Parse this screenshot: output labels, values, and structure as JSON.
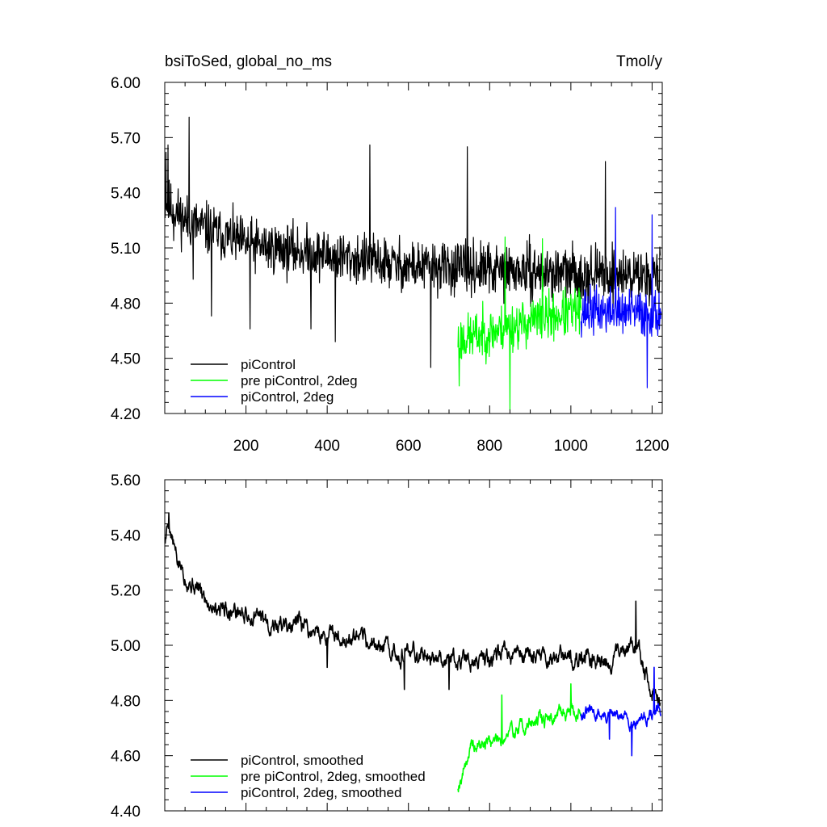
{
  "chart_data": [
    {
      "type": "line",
      "title": "bsiToSed, global_no_ms",
      "units": "Tmol/y",
      "xlim": [
        0,
        1225
      ],
      "ylim": [
        4.2,
        6.0
      ],
      "xticks": [
        200,
        400,
        600,
        800,
        1000,
        1200
      ],
      "xtick_labels": [
        "200",
        "400",
        "600",
        "800",
        "1000",
        "1200"
      ],
      "yticks": [
        4.2,
        4.5,
        4.8,
        5.1,
        5.4,
        5.7,
        6.0
      ],
      "ytick_labels": [
        "4.20",
        "4.50",
        "4.80",
        "5.10",
        "5.40",
        "5.70",
        "6.00"
      ],
      "legend_position": "bottom-left",
      "grid": false,
      "series": [
        {
          "name": "piControl",
          "color": "#000000",
          "x_range": [
            1,
            1220
          ],
          "approx_values": [
            [
              1,
              5.35
            ],
            [
              50,
              5.25
            ],
            [
              200,
              5.12
            ],
            [
              400,
              5.06
            ],
            [
              600,
              5.0
            ],
            [
              800,
              4.98
            ],
            [
              1000,
              4.96
            ],
            [
              1220,
              4.95
            ]
          ],
          "noise_amplitude": 0.13,
          "seed": 11,
          "extremes": [
            [
              3,
              5.62
            ],
            [
              8,
              5.66
            ],
            [
              22,
              5.14
            ],
            [
              60,
              5.81
            ],
            [
              70,
              4.93
            ],
            [
              115,
              4.73
            ],
            [
              210,
              4.66
            ],
            [
              360,
              4.66
            ],
            [
              420,
              4.59
            ],
            [
              505,
              5.66
            ],
            [
              655,
              4.45
            ],
            [
              745,
              5.65
            ],
            [
              1085,
              5.57
            ]
          ]
        },
        {
          "name": "pre piControl, 2deg",
          "color": "#00ff00",
          "x_range": [
            722,
            1025
          ],
          "approx_values": [
            [
              722,
              4.6
            ],
            [
              800,
              4.64
            ],
            [
              900,
              4.7
            ],
            [
              1025,
              4.76
            ]
          ],
          "noise_amplitude": 0.12,
          "seed": 23,
          "extremes": [
            [
              725,
              4.35
            ],
            [
              850,
              4.22
            ],
            [
              838,
              5.16
            ],
            [
              930,
              5.15
            ]
          ]
        },
        {
          "name": "piControl, 2deg",
          "color": "#0000ff",
          "x_range": [
            1025,
            1222
          ],
          "approx_values": [
            [
              1025,
              4.76
            ],
            [
              1120,
              4.75
            ],
            [
              1222,
              4.74
            ]
          ],
          "noise_amplitude": 0.12,
          "seed": 37,
          "extremes": [
            [
              1110,
              5.32
            ],
            [
              1200,
              5.28
            ],
            [
              1188,
              4.34
            ]
          ]
        }
      ]
    },
    {
      "type": "line",
      "xlim": [
        0,
        1225
      ],
      "ylim": [
        4.4,
        5.6
      ],
      "xticks": [
        200,
        400,
        600,
        800,
        1000,
        1200
      ],
      "yticks": [
        4.4,
        4.6,
        4.8,
        5.0,
        5.2,
        5.4,
        5.6
      ],
      "ytick_labels": [
        "4.40",
        "4.60",
        "4.80",
        "5.00",
        "5.20",
        "5.40",
        "5.60"
      ],
      "legend_position": "bottom-left",
      "grid": false,
      "series": [
        {
          "name": "piControl, smoothed",
          "color": "#000000",
          "x_range": [
            1,
            1220
          ],
          "approx_values": [
            [
              1,
              5.38
            ],
            [
              10,
              5.46
            ],
            [
              30,
              5.3
            ],
            [
              100,
              5.17
            ],
            [
              200,
              5.11
            ],
            [
              300,
              5.07
            ],
            [
              400,
              5.04
            ],
            [
              500,
              5.0
            ],
            [
              600,
              4.97
            ],
            [
              700,
              4.96
            ],
            [
              800,
              4.95
            ],
            [
              900,
              4.96
            ],
            [
              1000,
              4.95
            ],
            [
              1100,
              4.95
            ],
            [
              1160,
              5.0
            ],
            [
              1200,
              4.84
            ],
            [
              1220,
              4.77
            ]
          ],
          "noise_amplitude": 0.05,
          "seed": 5,
          "extremes": [
            [
              10,
              5.48
            ],
            [
              400,
              4.92
            ],
            [
              590,
              4.84
            ],
            [
              700,
              4.84
            ],
            [
              1160,
              5.16
            ],
            [
              1200,
              4.8
            ]
          ]
        },
        {
          "name": "pre piControl, 2deg, smoothed",
          "color": "#00ff00",
          "x_range": [
            722,
            1025
          ],
          "approx_values": [
            [
              722,
              4.49
            ],
            [
              750,
              4.62
            ],
            [
              800,
              4.65
            ],
            [
              850,
              4.68
            ],
            [
              900,
              4.72
            ],
            [
              950,
              4.74
            ],
            [
              1000,
              4.77
            ],
            [
              1025,
              4.75
            ]
          ],
          "noise_amplitude": 0.04,
          "seed": 19,
          "extremes": [
            [
              722,
              4.48
            ],
            [
              830,
              4.82
            ],
            [
              1000,
              4.86
            ]
          ]
        },
        {
          "name": "piControl, 2deg, smoothed",
          "color": "#0000ff",
          "x_range": [
            1025,
            1222
          ],
          "approx_values": [
            [
              1025,
              4.76
            ],
            [
              1100,
              4.74
            ],
            [
              1150,
              4.73
            ],
            [
              1222,
              4.76
            ]
          ],
          "noise_amplitude": 0.035,
          "seed": 31,
          "extremes": [
            [
              1095,
              4.66
            ],
            [
              1150,
              4.6
            ],
            [
              1205,
              4.92
            ]
          ]
        }
      ]
    }
  ]
}
